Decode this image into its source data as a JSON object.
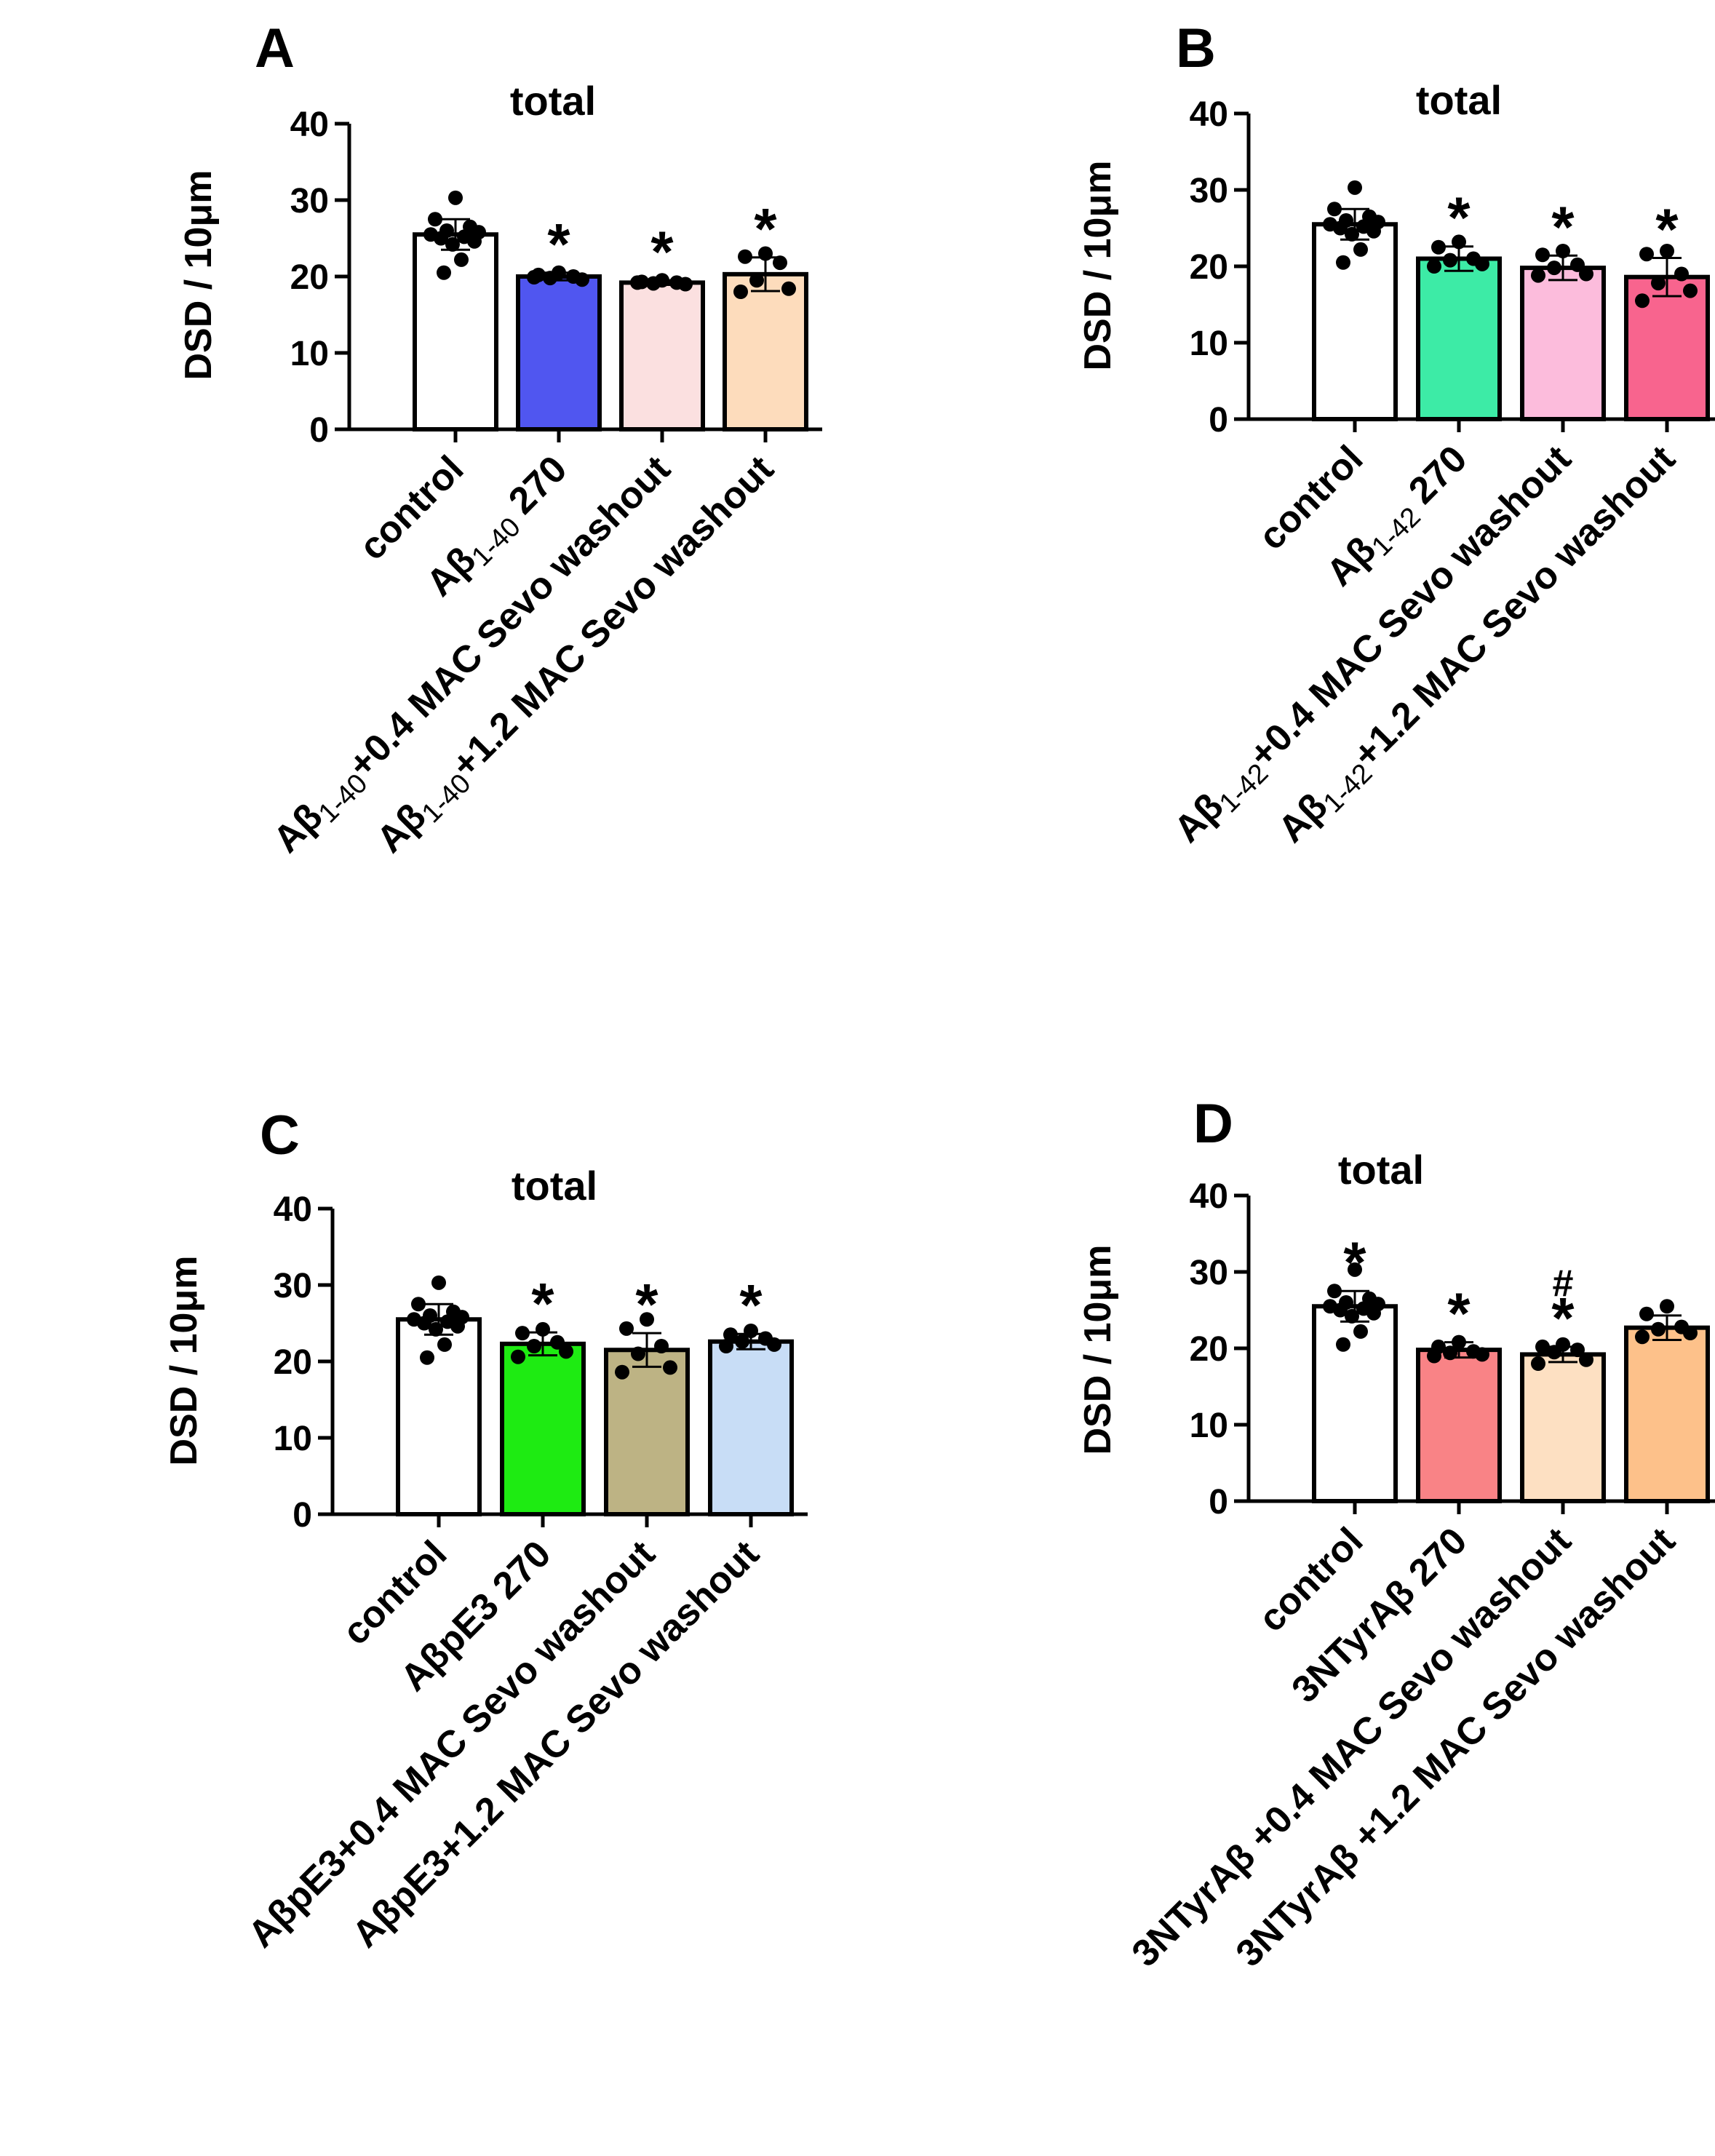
{
  "panels": [
    {
      "letter": "A",
      "chart_data": {
        "type": "bar",
        "title": "total",
        "ylabel": "DSD / 10μm",
        "ylim": [
          0,
          40
        ],
        "yticks": [
          0,
          10,
          20,
          30,
          40
        ],
        "categories": [
          [
            {
              "t": "control"
            }
          ],
          [
            {
              "t": "Aβ"
            },
            {
              "t": "1-40",
              "sub": true
            },
            {
              "t": " 270"
            }
          ],
          [
            {
              "t": "Aβ"
            },
            {
              "t": "1-40",
              "sub": true
            },
            {
              "t": "+0.4 MAC Sevo  washout"
            }
          ],
          [
            {
              "t": "Aβ"
            },
            {
              "t": "1-40",
              "sub": true
            },
            {
              "t": "+1.2 MAC Sevo  washout"
            }
          ]
        ],
        "values": [
          25.5,
          20.0,
          19.2,
          20.3
        ],
        "errors": [
          2.0,
          0.5,
          0.3,
          2.2
        ],
        "colors": [
          "#ffffff",
          "#5056f0",
          "#fbe0e0",
          "#fddcbc"
        ],
        "points": [
          [
            30.3,
            27.5,
            26.5,
            26.0,
            25.8,
            25.5,
            25.2,
            25.0,
            24.6,
            24.2,
            22.2,
            20.5
          ],
          [
            20.5,
            20.2,
            20.0,
            19.8,
            19.6,
            19.9
          ],
          [
            19.5,
            19.3,
            19.2,
            19.1,
            19.0,
            19.2
          ],
          [
            23.0,
            22.6,
            21.8,
            19.5,
            18.4,
            18.0
          ]
        ],
        "annotations": [
          "",
          "*",
          "*",
          "*"
        ],
        "hash": [
          "",
          "",
          "",
          ""
        ]
      }
    },
    {
      "letter": "B",
      "chart_data": {
        "type": "bar",
        "title": "total",
        "ylabel": "DSD / 10μm",
        "ylim": [
          0,
          40
        ],
        "yticks": [
          0,
          10,
          20,
          30,
          40
        ],
        "categories": [
          [
            {
              "t": "control"
            }
          ],
          [
            {
              "t": "Aβ"
            },
            {
              "t": "1-42",
              "sub": true
            },
            {
              "t": " 270"
            }
          ],
          [
            {
              "t": "Aβ"
            },
            {
              "t": "1-42",
              "sub": true
            },
            {
              "t": "+0.4 MAC Sevo  washout"
            }
          ],
          [
            {
              "t": "Aβ"
            },
            {
              "t": "1-42",
              "sub": true
            },
            {
              "t": "+1.2 MAC Sevo  washout"
            }
          ]
        ],
        "values": [
          25.5,
          21.0,
          19.8,
          18.6
        ],
        "errors": [
          2.0,
          1.6,
          1.6,
          2.5
        ],
        "colors": [
          "#ffffff",
          "#3deba6",
          "#fcbcdc",
          "#f8648e"
        ],
        "points": [
          [
            30.3,
            27.5,
            26.5,
            26.0,
            25.8,
            25.5,
            25.2,
            25.0,
            24.6,
            24.2,
            22.2,
            20.5
          ],
          [
            23.2,
            22.5,
            21.0,
            20.8,
            20.3,
            20.0
          ],
          [
            22.0,
            21.5,
            20.2,
            19.8,
            19.0,
            18.8
          ],
          [
            22.0,
            21.6,
            19.0,
            17.8,
            16.8,
            15.5
          ]
        ],
        "annotations": [
          "",
          "*",
          "*",
          "*"
        ],
        "hash": [
          "",
          "",
          "",
          ""
        ]
      }
    },
    {
      "letter": "C",
      "chart_data": {
        "type": "bar",
        "title": "total",
        "ylabel": "DSD / 10μm",
        "ylim": [
          0,
          40
        ],
        "yticks": [
          0,
          10,
          20,
          30,
          40
        ],
        "categories": [
          [
            {
              "t": "control"
            }
          ],
          [
            {
              "t": "AβpE3 270"
            }
          ],
          [
            {
              "t": "AβpE3+0.4 MAC Sevo  washout"
            }
          ],
          [
            {
              "t": "AβpE3+1.2 MAC Sevo  washout"
            }
          ]
        ],
        "values": [
          25.5,
          22.3,
          21.5,
          22.6
        ],
        "errors": [
          2.0,
          1.5,
          2.2,
          1.0
        ],
        "colors": [
          "#ffffff",
          "#1eeb12",
          "#bdb384",
          "#c8ddf6"
        ],
        "points": [
          [
            30.3,
            27.5,
            26.5,
            26.0,
            25.8,
            25.5,
            25.2,
            25.0,
            24.6,
            24.2,
            22.2,
            20.5
          ],
          [
            24.2,
            23.7,
            22.5,
            22.0,
            21.3,
            20.6
          ],
          [
            25.5,
            24.3,
            22.0,
            21.0,
            19.2,
            18.6
          ],
          [
            24.0,
            23.5,
            23.0,
            22.6,
            22.2,
            22.0
          ]
        ],
        "annotations": [
          "",
          "*",
          "*",
          "*"
        ],
        "hash": [
          "",
          "",
          "",
          ""
        ]
      }
    },
    {
      "letter": "D",
      "chart_data": {
        "type": "bar",
        "title": "total",
        "ylabel": "DSD / 10μm",
        "ylim": [
          0,
          40
        ],
        "yticks": [
          0,
          10,
          20,
          30,
          40
        ],
        "categories": [
          [
            {
              "t": "control"
            }
          ],
          [
            {
              "t": "3NTyrAβ 270"
            }
          ],
          [
            {
              "t": "3NTyrAβ +0.4 MAC Sevo  washout"
            }
          ],
          [
            {
              "t": "3NTyrAβ +1.2 MAC Sevo  washout"
            }
          ]
        ],
        "values": [
          25.5,
          19.8,
          19.2,
          22.7
        ],
        "errors": [
          2.0,
          1.0,
          1.0,
          1.6
        ],
        "colors": [
          "#ffffff",
          "#f98386",
          "#fde0c2",
          "#fdc18a"
        ],
        "points": [
          [
            30.3,
            27.5,
            26.5,
            26.0,
            25.8,
            25.5,
            25.2,
            25.0,
            24.6,
            24.2,
            22.2,
            20.5
          ],
          [
            20.8,
            20.2,
            19.6,
            19.4,
            19.2,
            19.0
          ],
          [
            20.5,
            20.2,
            19.8,
            19.5,
            18.5,
            18.0
          ],
          [
            25.5,
            24.5,
            22.8,
            22.5,
            22.0,
            21.5
          ]
        ],
        "annotations": [
          "*",
          "*",
          "*",
          ""
        ],
        "hash": [
          "",
          "",
          "#",
          ""
        ]
      }
    }
  ]
}
